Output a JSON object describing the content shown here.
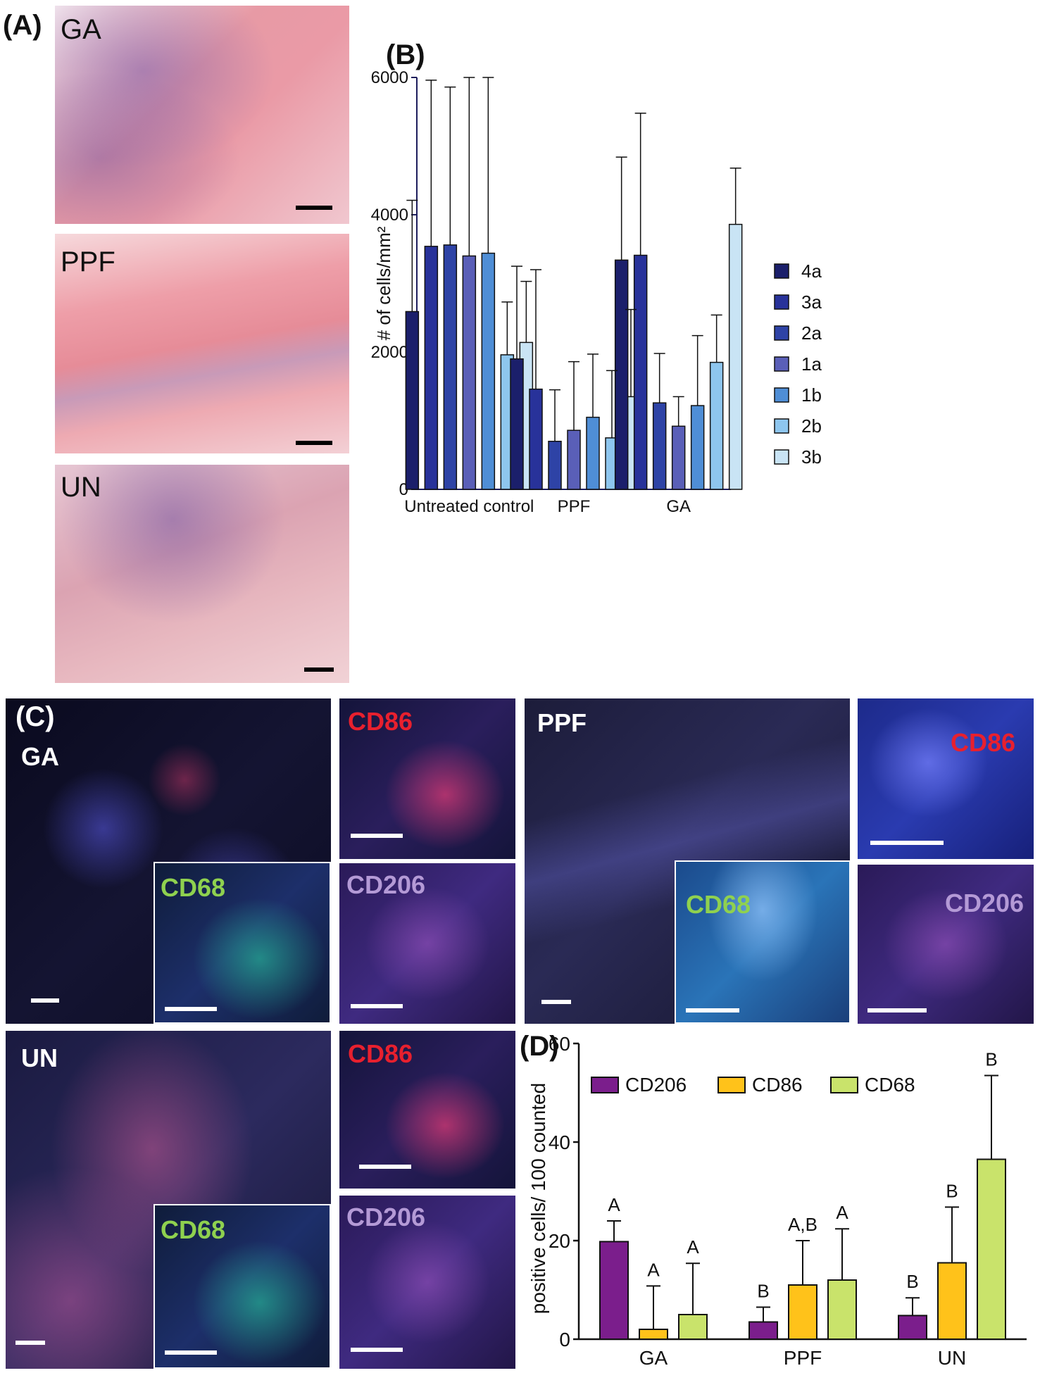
{
  "panels": {
    "A": {
      "label": "(A)",
      "images": [
        {
          "label": "GA"
        },
        {
          "label": "PPF"
        },
        {
          "label": "UN"
        }
      ]
    },
    "B": {
      "label": "(B)"
    },
    "C": {
      "label": "(C)",
      "ga_label": "GA",
      "ppf_label": "PPF",
      "un_label": "UN",
      "markers": {
        "cd86": "CD86",
        "cd68": "CD68",
        "cd206": "CD206"
      },
      "marker_colors": {
        "cd86": "#e8202e",
        "cd68": "#8fd14f",
        "cd206": "#b49ad6"
      }
    },
    "D": {
      "label": "(D)"
    }
  },
  "chart_data": [
    {
      "type": "bar",
      "panel": "B",
      "ylabel": "# of cells/mm²",
      "ylim": [
        0,
        6000
      ],
      "yticks": [
        0,
        2000,
        4000,
        6000
      ],
      "categories": [
        "Untreated control",
        "PPF",
        "GA"
      ],
      "series": [
        {
          "name": "4a",
          "color": "#1b1f6b",
          "values": [
            2590,
            1900,
            3340
          ],
          "errors": [
            1620,
            1350,
            1500
          ]
        },
        {
          "name": "3a",
          "color": "#28329a",
          "values": [
            3540,
            1460,
            3410
          ],
          "errors": [
            2420,
            1740,
            2070
          ]
        },
        {
          "name": "2a",
          "color": "#2e43a6",
          "values": [
            3560,
            700,
            1260
          ],
          "errors": [
            2300,
            750,
            720
          ]
        },
        {
          "name": "1a",
          "color": "#5a5fb8",
          "values": [
            3400,
            860,
            920
          ],
          "errors": [
            2600,
            1000,
            430
          ]
        },
        {
          "name": "1b",
          "color": "#4f8ed6",
          "values": [
            3440,
            1050,
            1220
          ],
          "errors": [
            2560,
            920,
            1020
          ]
        },
        {
          "name": "2b",
          "color": "#8ec6ee",
          "values": [
            1960,
            750,
            1850
          ],
          "errors": [
            770,
            980,
            690
          ]
        },
        {
          "name": "3b",
          "color": "#c9e4f5",
          "values": [
            2140,
            1350,
            3860
          ],
          "errors": [
            890,
            1270,
            820
          ]
        }
      ],
      "legend_position": "right",
      "grid": false
    },
    {
      "type": "bar",
      "panel": "D",
      "ylabel": "positive cells/ 100 counted",
      "ylim": [
        0,
        60
      ],
      "yticks": [
        0,
        20,
        40,
        60
      ],
      "categories": [
        "GA",
        "PPF",
        "UN"
      ],
      "series": [
        {
          "name": "CD206",
          "color": "#7b1e8c",
          "values": [
            19.8,
            3.5,
            4.8
          ],
          "errors": [
            4.2,
            3.0,
            3.6
          ],
          "letters": [
            "A",
            "B",
            "B"
          ]
        },
        {
          "name": "CD86",
          "color": "#ffc21a",
          "values": [
            2.0,
            11.0,
            15.5
          ],
          "errors": [
            8.8,
            9.0,
            11.3
          ],
          "letters": [
            "A",
            "A,B",
            "B"
          ]
        },
        {
          "name": "CD68",
          "color": "#c9e36b",
          "values": [
            5.0,
            12.0,
            36.5
          ],
          "errors": [
            10.4,
            10.4,
            17.0
          ],
          "letters": [
            "A",
            "A",
            "B"
          ]
        }
      ],
      "legend_position": "top",
      "grid": false
    }
  ]
}
